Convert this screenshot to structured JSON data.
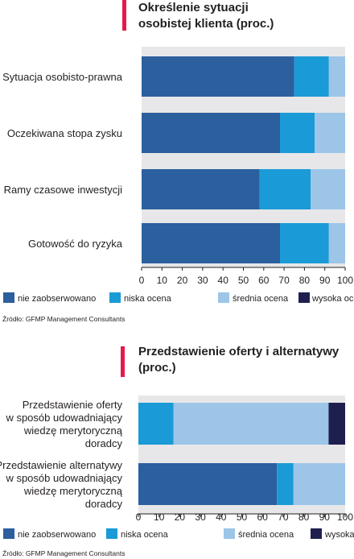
{
  "colors": {
    "background": "#ffffff",
    "accent_bar": "#e6194b",
    "nie_zaobserwowano": "#2b5f9e",
    "niska_ocena": "#1a9ad6",
    "srednia_ocena": "#9cc5e8",
    "wysoka_ocena": "#1f1f4f",
    "plot_background": "#e7e7e9",
    "text": "#231f20"
  },
  "chart_data": [
    {
      "type": "bar",
      "orientation": "horizontal",
      "stacked": true,
      "title": "Określenie sytuacji osobistej klienta (proc.)",
      "title_lines": [
        "Określenie sytuacji",
        "osobistej klienta (proc.)"
      ],
      "categories": [
        "Sytuacja osobisto-prawna",
        "Oczekiwana stopa zysku",
        "Ramy czasowe inwestycji",
        "Gotowość do ryzyka"
      ],
      "category_lines": [
        [
          "Sytuacja osobisto-prawna"
        ],
        [
          "Oczekiwana stopa zysku"
        ],
        [
          "Ramy czasowe inwestycji"
        ],
        [
          "Gotowość do ryzyka"
        ]
      ],
      "series": [
        {
          "name": "nie zaobserwowano",
          "color_key": "nie_zaobserwowano",
          "values": [
            75,
            68,
            58,
            68
          ]
        },
        {
          "name": "niska ocena",
          "color_key": "niska_ocena",
          "values": [
            17,
            17,
            25,
            24
          ]
        },
        {
          "name": "średnia ocena",
          "color_key": "srednia_ocena",
          "values": [
            8,
            15,
            17,
            8
          ]
        },
        {
          "name": "wysoka ocena",
          "color_key": "wysoka_ocena",
          "values": [
            0,
            0,
            0,
            0
          ]
        }
      ],
      "xlim": [
        0,
        100
      ],
      "x_ticks": [
        "0",
        "10",
        "20",
        "30",
        "40",
        "50",
        "60",
        "70",
        "80",
        "90",
        "100"
      ],
      "legend": [
        "nie zaobserwowano",
        "niska ocena",
        "średnia ocena",
        "wysoka ocena"
      ],
      "legend_position": "bottom",
      "source": "Źródło: GFMP Management Consultants"
    },
    {
      "type": "bar",
      "orientation": "horizontal",
      "stacked": true,
      "title": "Przedstawienie oferty i alternatywy (proc.)",
      "title_lines": [
        "Przedstawienie oferty i alternatywy",
        "(proc.)"
      ],
      "categories": [
        "Przedstawienie oferty w sposób udowadniający wiedzę merytoryczną doradcy",
        "Przedstawienie alternatywy w sposób udowadniający wiedzę merytoryczną doradcy"
      ],
      "category_lines": [
        [
          "Przedstawienie oferty",
          "w sposób udowadniający",
          "wiedzę merytoryczną",
          "doradcy"
        ],
        [
          "Przedstawienie alternatywy",
          "w sposób udowadniający",
          "wiedzę merytoryczną",
          "doradcy"
        ]
      ],
      "series": [
        {
          "name": "nie zaobserwowano",
          "color_key": "nie_zaobserwowano",
          "values": [
            0,
            67
          ]
        },
        {
          "name": "niska ocena",
          "color_key": "niska_ocena",
          "values": [
            17,
            8
          ]
        },
        {
          "name": "średnia ocena",
          "color_key": "srednia_ocena",
          "values": [
            75,
            25
          ]
        },
        {
          "name": "wysoka ocena",
          "color_key": "wysoka_ocena",
          "values": [
            8,
            0
          ]
        }
      ],
      "xlim": [
        0,
        100
      ],
      "x_ticks": [
        "0",
        "10",
        "20",
        "30",
        "40",
        "50",
        "60",
        "70",
        "80",
        "90",
        "100"
      ],
      "legend": [
        "nie zaobserwowano",
        "niska ocena",
        "średnia ocena",
        "wysoka ocena"
      ],
      "legend_position": "bottom",
      "source": "Źródło: GFMP Management Consultants"
    }
  ]
}
